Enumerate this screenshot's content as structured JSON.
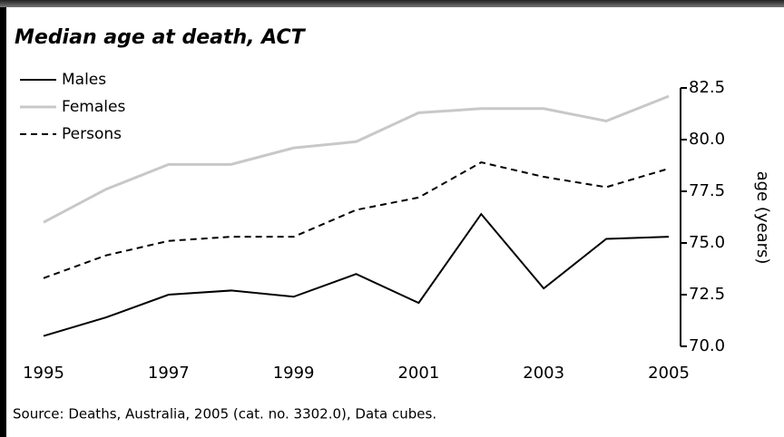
{
  "chart_data": {
    "type": "line",
    "title": "Median age at death, ACT",
    "x": [
      1995,
      1996,
      1997,
      1998,
      1999,
      2000,
      2001,
      2002,
      2003,
      2004,
      2005
    ],
    "series": [
      {
        "name": "Males",
        "color": "#000000",
        "dash": "solid",
        "values": [
          70.5,
          71.4,
          72.5,
          72.7,
          72.4,
          73.5,
          72.1,
          76.4,
          72.8,
          75.2,
          75.3
        ]
      },
      {
        "name": "Females",
        "color": "#c8c8c8",
        "dash": "solid",
        "values": [
          76.0,
          77.6,
          78.8,
          78.8,
          79.6,
          79.9,
          81.3,
          81.5,
          81.5,
          80.9,
          82.1
        ]
      },
      {
        "name": "Persons",
        "color": "#000000",
        "dash": "dashed",
        "values": [
          73.3,
          74.4,
          75.1,
          75.3,
          75.3,
          76.6,
          77.2,
          78.9,
          78.2,
          77.7,
          78.6
        ]
      }
    ],
    "xlim": [
      1995,
      2005
    ],
    "xticks": [
      1995,
      1997,
      1999,
      2001,
      2003,
      2005
    ],
    "ylim": [
      70,
      82.5
    ],
    "yticks": [
      {
        "value": 70,
        "label": "70.0"
      },
      72.5,
      {
        "value": 75,
        "label": "75.0"
      },
      77.5,
      {
        "value": 80,
        "label": "80.0"
      },
      82.5
    ],
    "y_axis_label": "age (years)",
    "legend": "upper left",
    "source": "Source: Deaths, Australia, 2005 (cat. no. 3302.0), Data cubes."
  }
}
